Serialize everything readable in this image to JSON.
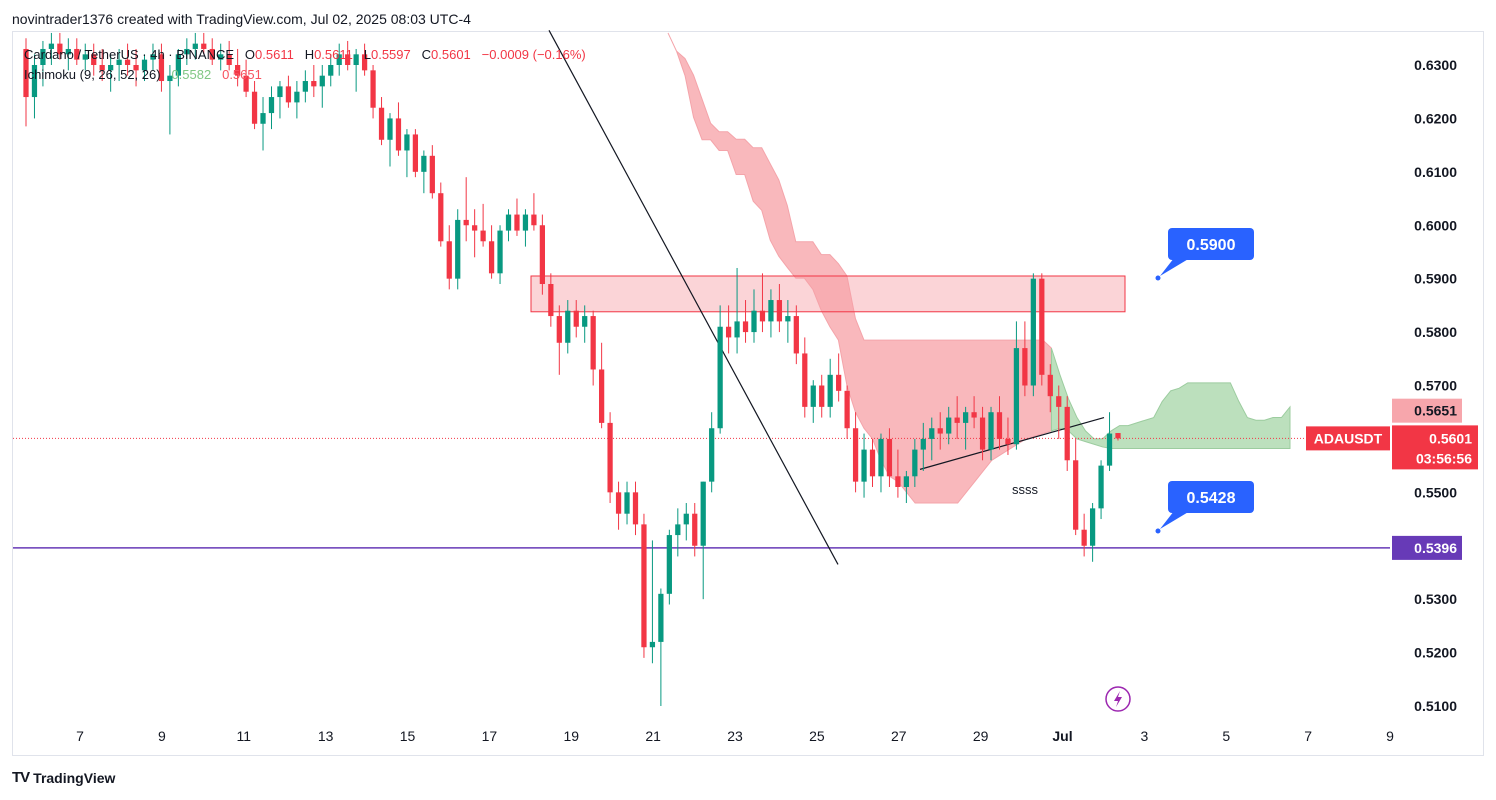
{
  "header": {
    "text": "novintrader1376 created with TradingView.com, Jul 02, 2025 08:03 UTC-4"
  },
  "legend": {
    "symbol": "Cardano / TetherUS · 4h · BINANCE",
    "o_label": "O",
    "o_value": "0.5611",
    "h_label": "H",
    "h_value": "0.5611",
    "l_label": "L",
    "l_value": "0.5597",
    "c_label": "C",
    "c_value": "0.5601",
    "change": "−0.0009 (−0.16%)",
    "indicator": "Ichimoku (9, 26, 52, 26)",
    "ind_value_1": "0.5582",
    "ind_value_2": "0.5651"
  },
  "footer": {
    "brand": "TradingView"
  },
  "chart_data": {
    "type": "candlestick",
    "symbol": "ADAUSDT",
    "timeframe": "4h",
    "y_axis": {
      "range": [
        0.508,
        0.636
      ],
      "ticks": [
        "0.6300",
        "0.6200",
        "0.6100",
        "0.6000",
        "0.5900",
        "0.5800",
        "0.5700",
        "0.5600",
        "0.5500",
        "0.5400",
        "0.5300",
        "0.5200",
        "0.5100"
      ]
    },
    "x_axis": {
      "labels": [
        "7",
        "9",
        "11",
        "13",
        "15",
        "17",
        "19",
        "21",
        "23",
        "25",
        "27",
        "29",
        "Jul",
        "3",
        "5",
        "7",
        "9"
      ]
    },
    "price_labels": [
      {
        "name": "ichimoku-span-b",
        "value": 0.5651,
        "text": "0.5651",
        "color": "#f7a6ac"
      },
      {
        "name": "last-price",
        "value": 0.5601,
        "text": "0.5601",
        "countdown": "03:56:56",
        "symbol": "ADAUSDT",
        "color": "#f23645"
      },
      {
        "name": "ichimoku-span-a",
        "value": 0.5582,
        "text": "0.5582",
        "color": "#a5d6a7"
      },
      {
        "name": "support-line",
        "value": 0.5396,
        "text": "0.5396",
        "color": "#673ab7"
      }
    ],
    "callouts": [
      {
        "text": "0.5900",
        "value": 0.59
      },
      {
        "text": "0.5428",
        "value": 0.5428
      }
    ],
    "annotations": [
      {
        "text": "ssss"
      }
    ],
    "horizontal_line": {
      "value": 0.5396,
      "color": "#673ab7"
    },
    "zone": {
      "top": 0.5905,
      "bottom": 0.5838
    },
    "trendlines": [
      {
        "name": "descending-trendline",
        "points": [
          [
            0.0,
            0.6365
          ],
          [
            1.0,
            0.5365
          ]
        ]
      },
      {
        "name": "rising-trendline",
        "points": [
          [
            0.0,
            0.5543
          ],
          [
            1.0,
            0.564
          ]
        ]
      }
    ],
    "colors": {
      "up": "#089981",
      "down": "#f23645",
      "kumo_bear": "#f7a0a6",
      "kumo_bull": "#a5d6a7",
      "support": "#673ab7"
    },
    "candles": [
      [
        0.633,
        0.635,
        0.6185,
        0.624
      ],
      [
        0.624,
        0.632,
        0.62,
        0.63
      ],
      [
        0.63,
        0.6345,
        0.626,
        0.633
      ],
      [
        0.633,
        0.636,
        0.63,
        0.634
      ],
      [
        0.634,
        0.636,
        0.631,
        0.632
      ],
      [
        0.632,
        0.635,
        0.629,
        0.633
      ],
      [
        0.633,
        0.635,
        0.63,
        0.631
      ],
      [
        0.631,
        0.634,
        0.629,
        0.632
      ],
      [
        0.632,
        0.634,
        0.628,
        0.63
      ],
      [
        0.63,
        0.633,
        0.627,
        0.629
      ],
      [
        0.629,
        0.632,
        0.625,
        0.63
      ],
      [
        0.63,
        0.633,
        0.627,
        0.631
      ],
      [
        0.631,
        0.634,
        0.628,
        0.63
      ],
      [
        0.63,
        0.633,
        0.626,
        0.629
      ],
      [
        0.629,
        0.632,
        0.627,
        0.631
      ],
      [
        0.631,
        0.634,
        0.629,
        0.632
      ],
      [
        0.632,
        0.634,
        0.625,
        0.627
      ],
      [
        0.627,
        0.63,
        0.617,
        0.628
      ],
      [
        0.628,
        0.633,
        0.626,
        0.632
      ],
      [
        0.632,
        0.635,
        0.63,
        0.633
      ],
      [
        0.633,
        0.636,
        0.631,
        0.634
      ],
      [
        0.634,
        0.636,
        0.632,
        0.633
      ],
      [
        0.633,
        0.635,
        0.63,
        0.631
      ],
      [
        0.631,
        0.634,
        0.629,
        0.632
      ],
      [
        0.632,
        0.6345,
        0.629,
        0.63
      ],
      [
        0.63,
        0.633,
        0.626,
        0.628
      ],
      [
        0.628,
        0.631,
        0.624,
        0.625
      ],
      [
        0.625,
        0.627,
        0.618,
        0.619
      ],
      [
        0.619,
        0.624,
        0.614,
        0.621
      ],
      [
        0.621,
        0.626,
        0.618,
        0.624
      ],
      [
        0.624,
        0.627,
        0.62,
        0.626
      ],
      [
        0.626,
        0.628,
        0.622,
        0.623
      ],
      [
        0.623,
        0.627,
        0.62,
        0.625
      ],
      [
        0.625,
        0.629,
        0.623,
        0.627
      ],
      [
        0.627,
        0.63,
        0.624,
        0.626
      ],
      [
        0.626,
        0.63,
        0.622,
        0.628
      ],
      [
        0.628,
        0.632,
        0.626,
        0.63
      ],
      [
        0.63,
        0.634,
        0.628,
        0.632
      ],
      [
        0.632,
        0.6345,
        0.629,
        0.63
      ],
      [
        0.63,
        0.633,
        0.625,
        0.632
      ],
      [
        0.632,
        0.634,
        0.628,
        0.629
      ],
      [
        0.629,
        0.63,
        0.62,
        0.622
      ],
      [
        0.622,
        0.624,
        0.615,
        0.616
      ],
      [
        0.616,
        0.621,
        0.611,
        0.62
      ],
      [
        0.62,
        0.623,
        0.613,
        0.614
      ],
      [
        0.614,
        0.618,
        0.609,
        0.617
      ],
      [
        0.617,
        0.618,
        0.609,
        0.61
      ],
      [
        0.61,
        0.614,
        0.606,
        0.613
      ],
      [
        0.613,
        0.615,
        0.605,
        0.606
      ],
      [
        0.606,
        0.608,
        0.596,
        0.597
      ],
      [
        0.597,
        0.6,
        0.588,
        0.59
      ],
      [
        0.59,
        0.603,
        0.588,
        0.601
      ],
      [
        0.601,
        0.609,
        0.597,
        0.6
      ],
      [
        0.6,
        0.603,
        0.594,
        0.599
      ],
      [
        0.599,
        0.604,
        0.596,
        0.597
      ],
      [
        0.597,
        0.6,
        0.59,
        0.591
      ],
      [
        0.591,
        0.6,
        0.589,
        0.599
      ],
      [
        0.599,
        0.603,
        0.597,
        0.602
      ],
      [
        0.602,
        0.605,
        0.598,
        0.599
      ],
      [
        0.599,
        0.603,
        0.596,
        0.602
      ],
      [
        0.602,
        0.606,
        0.599,
        0.6
      ],
      [
        0.6,
        0.602,
        0.587,
        0.589
      ],
      [
        0.589,
        0.591,
        0.581,
        0.583
      ],
      [
        0.583,
        0.585,
        0.572,
        0.578
      ],
      [
        0.578,
        0.586,
        0.576,
        0.584
      ],
      [
        0.584,
        0.586,
        0.579,
        0.581
      ],
      [
        0.581,
        0.585,
        0.578,
        0.583
      ],
      [
        0.583,
        0.584,
        0.57,
        0.573
      ],
      [
        0.573,
        0.578,
        0.562,
        0.563
      ],
      [
        0.563,
        0.565,
        0.548,
        0.55
      ],
      [
        0.55,
        0.552,
        0.543,
        0.546
      ],
      [
        0.546,
        0.552,
        0.544,
        0.55
      ],
      [
        0.55,
        0.552,
        0.542,
        0.544
      ],
      [
        0.544,
        0.546,
        0.519,
        0.521
      ],
      [
        0.521,
        0.541,
        0.518,
        0.522
      ],
      [
        0.522,
        0.532,
        0.51,
        0.531
      ],
      [
        0.531,
        0.543,
        0.529,
        0.542
      ],
      [
        0.542,
        0.547,
        0.538,
        0.544
      ],
      [
        0.544,
        0.548,
        0.541,
        0.546
      ],
      [
        0.546,
        0.548,
        0.538,
        0.54
      ],
      [
        0.54,
        0.552,
        0.53,
        0.552
      ],
      [
        0.552,
        0.565,
        0.55,
        0.562
      ],
      [
        0.562,
        0.585,
        0.561,
        0.581
      ],
      [
        0.581,
        0.585,
        0.576,
        0.579
      ],
      [
        0.579,
        0.592,
        0.576,
        0.582
      ],
      [
        0.582,
        0.586,
        0.578,
        0.58
      ],
      [
        0.58,
        0.588,
        0.578,
        0.584
      ],
      [
        0.584,
        0.591,
        0.58,
        0.582
      ],
      [
        0.582,
        0.588,
        0.579,
        0.586
      ],
      [
        0.586,
        0.589,
        0.58,
        0.582
      ],
      [
        0.582,
        0.586,
        0.578,
        0.583
      ],
      [
        0.583,
        0.585,
        0.574,
        0.576
      ],
      [
        0.576,
        0.579,
        0.564,
        0.566
      ],
      [
        0.566,
        0.571,
        0.563,
        0.57
      ],
      [
        0.57,
        0.572,
        0.564,
        0.566
      ],
      [
        0.566,
        0.575,
        0.564,
        0.572
      ],
      [
        0.572,
        0.576,
        0.567,
        0.569
      ],
      [
        0.569,
        0.57,
        0.56,
        0.562
      ],
      [
        0.562,
        0.565,
        0.55,
        0.552
      ],
      [
        0.552,
        0.561,
        0.549,
        0.558
      ],
      [
        0.558,
        0.56,
        0.551,
        0.553
      ],
      [
        0.553,
        0.561,
        0.55,
        0.56
      ],
      [
        0.56,
        0.562,
        0.551,
        0.553
      ],
      [
        0.553,
        0.558,
        0.549,
        0.551
      ],
      [
        0.551,
        0.554,
        0.548,
        0.553
      ],
      [
        0.553,
        0.56,
        0.551,
        0.558
      ],
      [
        0.558,
        0.563,
        0.554,
        0.56
      ],
      [
        0.56,
        0.564,
        0.556,
        0.562
      ],
      [
        0.562,
        0.565,
        0.558,
        0.561
      ],
      [
        0.561,
        0.566,
        0.559,
        0.564
      ],
      [
        0.564,
        0.568,
        0.56,
        0.563
      ],
      [
        0.563,
        0.566,
        0.558,
        0.565
      ],
      [
        0.565,
        0.568,
        0.562,
        0.564
      ],
      [
        0.564,
        0.566,
        0.556,
        0.558
      ],
      [
        0.558,
        0.566,
        0.556,
        0.565
      ],
      [
        0.565,
        0.568,
        0.558,
        0.56
      ],
      [
        0.56,
        0.564,
        0.557,
        0.559
      ],
      [
        0.559,
        0.582,
        0.558,
        0.577
      ],
      [
        0.577,
        0.582,
        0.568,
        0.57
      ],
      [
        0.57,
        0.591,
        0.568,
        0.59
      ],
      [
        0.59,
        0.591,
        0.57,
        0.572
      ],
      [
        0.572,
        0.574,
        0.565,
        0.568
      ],
      [
        0.568,
        0.57,
        0.56,
        0.566
      ],
      [
        0.566,
        0.568,
        0.554,
        0.556
      ],
      [
        0.556,
        0.56,
        0.542,
        0.543
      ],
      [
        0.543,
        0.546,
        0.538,
        0.54
      ],
      [
        0.54,
        0.548,
        0.537,
        0.547
      ],
      [
        0.547,
        0.556,
        0.545,
        0.555
      ],
      [
        0.555,
        0.565,
        0.554,
        0.561
      ],
      [
        0.5611,
        0.5611,
        0.5597,
        0.5601
      ]
    ],
    "kumo": {
      "top_values": [
        0.636,
        0.6326,
        0.6312,
        0.6281,
        0.6236,
        0.6191,
        0.6175,
        0.6175,
        0.6161,
        0.6161,
        0.6145,
        0.6145,
        0.6115,
        0.6085,
        0.6037,
        0.5969,
        0.5969,
        0.5969,
        0.5945,
        0.5945,
        0.5928,
        0.5905,
        0.5825,
        0.5785,
        0.5785,
        0.5785,
        0.5785,
        0.5785,
        0.5785,
        0.5785,
        0.5785,
        0.5785,
        0.5785,
        0.5785,
        0.5785,
        0.5785,
        0.5785,
        0.5785,
        0.5785,
        0.5785,
        0.5785,
        0.5785,
        0.5785,
        0.5785,
        0.5785,
        0.577,
        0.572,
        0.5675,
        0.564,
        0.5615,
        0.56,
        0.56,
        0.5615,
        0.5625,
        0.5625,
        0.563,
        0.5635,
        0.564,
        0.567,
        0.569,
        0.5695,
        0.5705,
        0.5705,
        0.5705,
        0.5705,
        0.5705,
        0.5705,
        0.567,
        0.564,
        0.5635,
        0.5635,
        0.564,
        0.564,
        0.566
      ],
      "bottom_values": [
        0.636,
        0.6326,
        0.628,
        0.6202,
        0.616,
        0.616,
        0.614,
        0.614,
        0.6095,
        0.6095,
        0.6045,
        0.6028,
        0.5972,
        0.5942,
        0.5921,
        0.5901,
        0.5901,
        0.588,
        0.584,
        0.581,
        0.5785,
        0.57,
        0.565,
        0.562,
        0.56,
        0.556,
        0.553,
        0.552,
        0.55,
        0.548,
        0.548,
        0.548,
        0.548,
        0.548,
        0.548,
        0.55,
        0.552,
        0.554,
        0.556,
        0.557,
        0.558,
        0.559,
        0.56,
        0.5605,
        0.561,
        0.5615,
        0.562,
        0.5615,
        0.56,
        0.5595,
        0.559,
        0.5585,
        0.5582,
        0.5582,
        0.5582,
        0.5582,
        0.5582,
        0.5582,
        0.5582,
        0.5582,
        0.5582,
        0.5582,
        0.5582,
        0.5582,
        0.5582,
        0.5582,
        0.5582,
        0.5582,
        0.5582,
        0.5582,
        0.5582,
        0.5582,
        0.5582,
        0.5582
      ],
      "flip_index": 45
    }
  }
}
